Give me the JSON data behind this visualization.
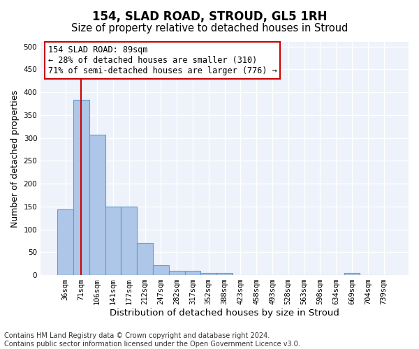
{
  "title": "154, SLAD ROAD, STROUD, GL5 1RH",
  "subtitle": "Size of property relative to detached houses in Stroud",
  "xlabel": "Distribution of detached houses by size in Stroud",
  "ylabel": "Number of detached properties",
  "bar_values": [
    143,
    384,
    307,
    149,
    149,
    70,
    22,
    10,
    10,
    5,
    5,
    0,
    0,
    0,
    0,
    0,
    0,
    0,
    5,
    0,
    0
  ],
  "bar_labels": [
    "36sqm",
    "71sqm",
    "106sqm",
    "141sqm",
    "177sqm",
    "212sqm",
    "247sqm",
    "282sqm",
    "317sqm",
    "352sqm",
    "388sqm",
    "423sqm",
    "458sqm",
    "493sqm",
    "528sqm",
    "563sqm",
    "598sqm",
    "634sqm",
    "669sqm",
    "704sqm",
    "739sqm"
  ],
  "bar_color": "#aec6e8",
  "bar_edge_color": "#5a9fd4",
  "annotation_line1": "154 SLAD ROAD: 89sqm",
  "annotation_line2": "← 28% of detached houses are smaller (310)",
  "annotation_line3": "71% of semi-detached houses are larger (776) →",
  "annotation_box_color": "#ffffff",
  "annotation_box_edge_color": "#cc0000",
  "vline_x": 1,
  "vline_color": "#cc0000",
  "ylim": [
    0,
    510
  ],
  "yticks": [
    0,
    50,
    100,
    150,
    200,
    250,
    300,
    350,
    400,
    450,
    500
  ],
  "background_color": "#eef2fa",
  "grid_color": "#ffffff",
  "footnote": "Contains HM Land Registry data © Crown copyright and database right 2024.\nContains public sector information licensed under the Open Government Licence v3.0.",
  "title_fontsize": 12,
  "subtitle_fontsize": 10.5,
  "xlabel_fontsize": 9.5,
  "ylabel_fontsize": 9,
  "tick_fontsize": 7.5,
  "annotation_fontsize": 8.5,
  "footnote_fontsize": 7
}
